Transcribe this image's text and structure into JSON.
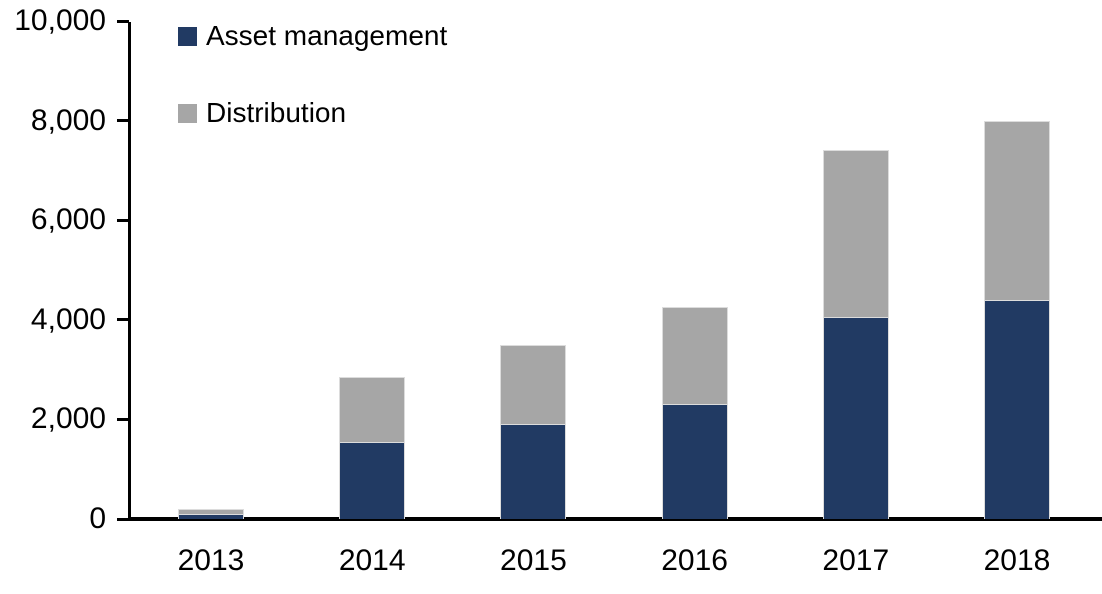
{
  "chart_data": {
    "type": "bar",
    "stacked": true,
    "title": "",
    "xlabel": "",
    "ylabel": "",
    "categories": [
      "2013",
      "2014",
      "2015",
      "2016",
      "2017",
      "2018"
    ],
    "series": [
      {
        "name": "Asset management",
        "color": "#213A63",
        "values": [
          100,
          1550,
          1900,
          2300,
          4050,
          4400
        ]
      },
      {
        "name": "Distribution",
        "color": "#A6A6A6",
        "values": [
          100,
          1300,
          1600,
          1950,
          3350,
          3600
        ]
      }
    ],
    "totals": [
      200,
      2850,
      3500,
      4250,
      7400,
      8000
    ],
    "ylim": [
      0,
      10000
    ],
    "ytick_step": 2000,
    "yticks": [
      0,
      2000,
      4000,
      6000,
      8000,
      10000
    ],
    "ytick_labels": [
      "0",
      "2,000",
      "4,000",
      "6,000",
      "8,000",
      "10,000"
    ],
    "grid": false,
    "legend_position": "top-left",
    "axis_color": "#000000",
    "background_color": "#FFFFFF"
  }
}
